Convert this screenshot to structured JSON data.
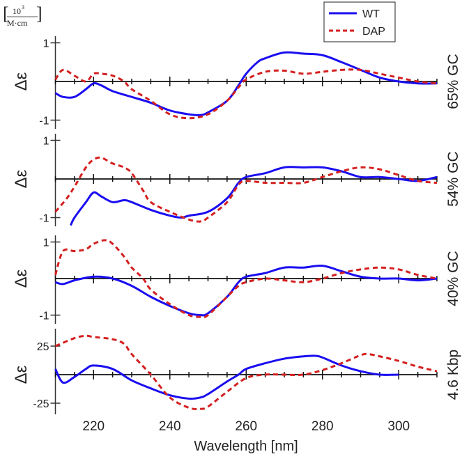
{
  "chart_data": {
    "type": "line",
    "unit_label": {
      "numerator": "10",
      "exponent": "3",
      "denominator": "M·cm"
    },
    "xlabel": "Wavelength [nm]",
    "xlim": [
      210,
      310
    ],
    "xticks": [
      220,
      240,
      260,
      280,
      300
    ],
    "legend": {
      "placement": "top-right",
      "entries": [
        {
          "name": "WT",
          "color": "#1a0df0",
          "style": "solid"
        },
        {
          "name": "DAP",
          "color": "#d42020",
          "style": "dashed"
        }
      ]
    },
    "panels": [
      {
        "label": "65% GC",
        "ylabel": "Δε",
        "ylim": [
          -1.2,
          1.2
        ],
        "yticks": [
          {
            "v": 1,
            "t": "1"
          },
          {
            "v": -1,
            "t": "-1"
          }
        ],
        "series": [
          {
            "name": "WT",
            "x": [
              210,
              212,
              215,
              218,
              220,
              222,
              225,
              230,
              235,
              240,
              245,
              248,
              250,
              255,
              258,
              260,
              263,
              265,
              270,
              275,
              280,
              285,
              290,
              295,
              300,
              305,
              310
            ],
            "y": [
              -0.3,
              -0.4,
              -0.4,
              -0.2,
              -0.05,
              -0.1,
              -0.25,
              -0.4,
              -0.55,
              -0.75,
              -0.85,
              -0.87,
              -0.8,
              -0.5,
              -0.1,
              0.2,
              0.5,
              0.6,
              0.75,
              0.72,
              0.68,
              0.5,
              0.3,
              0.1,
              0.0,
              -0.05,
              -0.05
            ]
          },
          {
            "name": "DAP",
            "x": [
              210,
              212,
              215,
              218,
              220,
              222,
              225,
              228,
              230,
              235,
              240,
              245,
              250,
              255,
              258,
              260,
              265,
              270,
              275,
              280,
              285,
              290,
              295,
              300,
              305,
              310
            ],
            "y": [
              0.05,
              0.3,
              0.15,
              0.0,
              0.2,
              0.2,
              0.15,
              0.0,
              -0.2,
              -0.5,
              -0.85,
              -0.95,
              -0.85,
              -0.5,
              -0.15,
              0.05,
              0.25,
              0.28,
              0.2,
              0.25,
              0.3,
              0.3,
              0.2,
              0.1,
              0.0,
              -0.05
            ]
          }
        ]
      },
      {
        "label": "54% GC",
        "ylabel": "Δε",
        "ylim": [
          -1.2,
          1.2
        ],
        "yticks": [
          {
            "v": 1,
            "t": "1"
          },
          {
            "v": -1,
            "t": "-1"
          }
        ],
        "series": [
          {
            "name": "WT",
            "x": [
              214,
              215,
              218,
              220,
              222,
              225,
              228,
              230,
              235,
              240,
              243,
              245,
              250,
              255,
              258,
              260,
              265,
              270,
              275,
              280,
              285,
              290,
              295,
              300,
              305,
              310
            ],
            "y": [
              -1.2,
              -1.0,
              -0.6,
              -0.35,
              -0.45,
              -0.6,
              -0.55,
              -0.6,
              -0.8,
              -0.95,
              -1.0,
              -0.95,
              -0.85,
              -0.5,
              -0.1,
              0.05,
              0.15,
              0.3,
              0.3,
              0.3,
              0.2,
              0.05,
              0.05,
              0.0,
              -0.05,
              0.05
            ]
          },
          {
            "name": "DAP",
            "x": [
              210,
              213,
              215,
              218,
              220,
              222,
              225,
              228,
              230,
              233,
              235,
              240,
              245,
              248,
              250,
              255,
              258,
              260,
              265,
              270,
              275,
              280,
              285,
              290,
              295,
              300,
              305,
              310
            ],
            "y": [
              -0.85,
              -0.5,
              -0.2,
              0.3,
              0.5,
              0.55,
              0.4,
              0.3,
              0.15,
              -0.3,
              -0.6,
              -0.85,
              -1.05,
              -1.1,
              -1.0,
              -0.6,
              -0.15,
              -0.05,
              -0.1,
              -0.1,
              -0.1,
              0.05,
              0.2,
              0.3,
              0.25,
              0.1,
              -0.05,
              -0.1
            ]
          }
        ]
      },
      {
        "label": "40% GC",
        "ylabel": "Δε",
        "ylim": [
          -1.2,
          1.2
        ],
        "yticks": [
          {
            "v": 1,
            "t": "1"
          },
          {
            "v": -1,
            "t": "-1"
          }
        ],
        "series": [
          {
            "name": "WT",
            "x": [
              210,
              212,
              215,
              220,
              225,
              230,
              235,
              240,
              245,
              248,
              250,
              255,
              258,
              260,
              265,
              270,
              275,
              280,
              285,
              290,
              295,
              300,
              305,
              310
            ],
            "y": [
              -0.1,
              -0.15,
              -0.05,
              0.05,
              0.0,
              -0.2,
              -0.5,
              -0.75,
              -0.95,
              -1.0,
              -0.95,
              -0.5,
              -0.1,
              0.05,
              0.15,
              0.3,
              0.3,
              0.35,
              0.2,
              0.05,
              0.0,
              0.0,
              -0.05,
              0.0
            ]
          },
          {
            "name": "DAP",
            "x": [
              210,
              212,
              215,
              218,
              220,
              223,
              225,
              228,
              230,
              233,
              235,
              240,
              245,
              248,
              250,
              255,
              258,
              260,
              265,
              270,
              275,
              280,
              285,
              290,
              295,
              300,
              305,
              310
            ],
            "y": [
              0.1,
              0.75,
              0.75,
              0.8,
              0.95,
              1.05,
              0.95,
              0.6,
              0.3,
              0.0,
              -0.3,
              -0.7,
              -1.0,
              -1.05,
              -1.0,
              -0.5,
              -0.2,
              -0.1,
              0.0,
              -0.05,
              -0.1,
              0.0,
              0.15,
              0.25,
              0.3,
              0.25,
              0.1,
              0.0
            ]
          }
        ]
      },
      {
        "label": "4.6 Kbp",
        "ylabel": "Δε",
        "ylim": [
          -35,
          40
        ],
        "yticks": [
          {
            "v": 25,
            "t": "25"
          },
          {
            "v": -25,
            "t": "-25"
          }
        ],
        "series": [
          {
            "name": "WT",
            "x": [
              210,
              212,
              215,
              218,
              220,
              225,
              230,
              235,
              240,
              245,
              248,
              250,
              255,
              258,
              260,
              265,
              270,
              275,
              278,
              280,
              285,
              290,
              295,
              300
            ],
            "y": [
              5,
              -7,
              -2,
              5,
              8,
              5,
              -5,
              -12,
              -18,
              -21,
              -20,
              -17,
              -6,
              0,
              5,
              10,
              14,
              16,
              16.5,
              15,
              8,
              3,
              0,
              0
            ]
          },
          {
            "name": "DAP",
            "x": [
              210,
              215,
              218,
              220,
              225,
              228,
              230,
              235,
              240,
              245,
              248,
              250,
              255,
              260,
              265,
              270,
              275,
              280,
              285,
              290,
              292,
              295,
              300,
              305,
              310
            ],
            "y": [
              25,
              32,
              34,
              33,
              31,
              27,
              18,
              0,
              -20,
              -29,
              -30,
              -28,
              -15,
              -3,
              0,
              0,
              0,
              4,
              10,
              17,
              18,
              16,
              12,
              7,
              3
            ]
          }
        ]
      }
    ]
  }
}
